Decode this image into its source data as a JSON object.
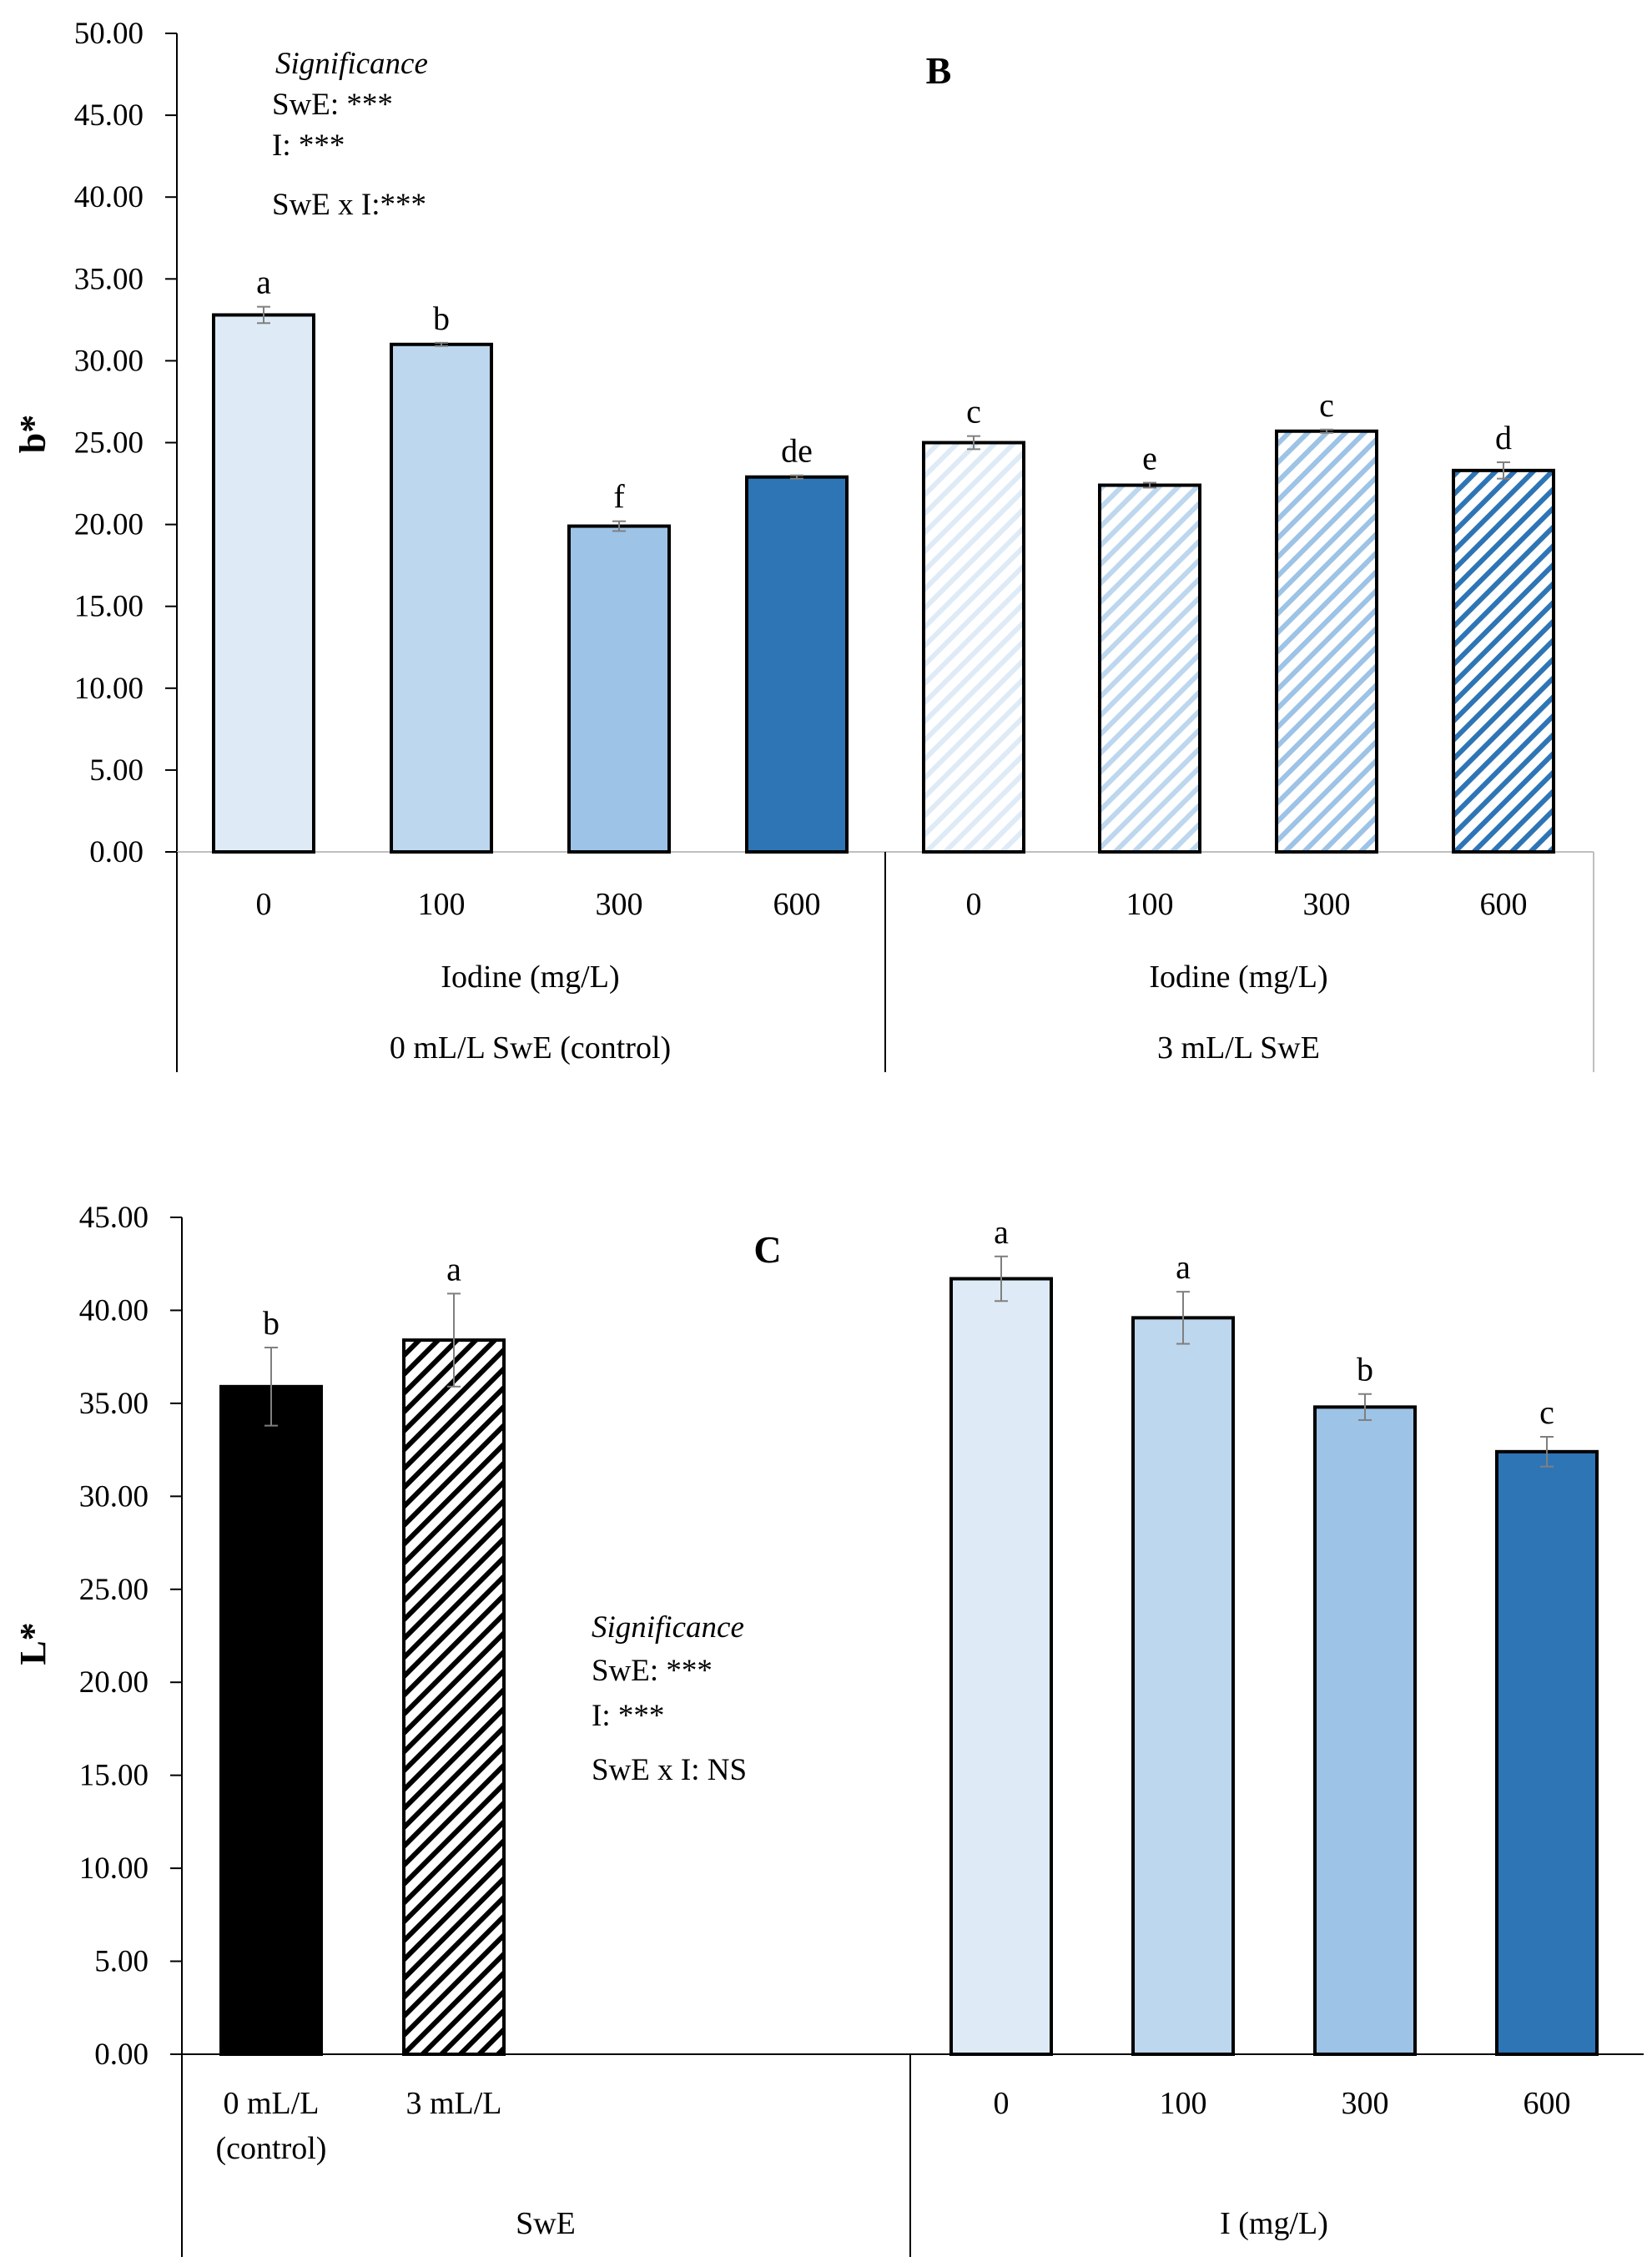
{
  "chart_data": [
    {
      "type": "bar",
      "panel_label": "B",
      "ylabel": "b*",
      "ylim": [
        0,
        50
      ],
      "y_ticks": [
        "0.00",
        "5.00",
        "10.00",
        "15.00",
        "20.00",
        "25.00",
        "30.00",
        "35.00",
        "40.00",
        "45.00",
        "50.00"
      ],
      "groups": [
        {
          "label": "0 mL/L SwE (control)",
          "axis_label": "Iodine (mg/L)",
          "categories": [
            "0",
            "100",
            "300",
            "600"
          ],
          "values": [
            32.8,
            31.0,
            19.9,
            22.9
          ],
          "errors": [
            0.5,
            0.1,
            0.3,
            0.1
          ],
          "letters": [
            "a",
            "b",
            "f",
            "de"
          ],
          "colors": [
            "#deebf7",
            "#bdd7ee",
            "#9dc3e6",
            "#2e75b6"
          ],
          "hatched": false
        },
        {
          "label": "3 mL/L SwE",
          "axis_label": "Iodine (mg/L)",
          "categories": [
            "0",
            "100",
            "300",
            "600"
          ],
          "values": [
            25.0,
            22.4,
            25.7,
            23.3
          ],
          "errors": [
            0.4,
            0.15,
            0.1,
            0.5
          ],
          "letters": [
            "c",
            "e",
            "c",
            "d"
          ],
          "colors": [
            "#deebf7",
            "#bdd7ee",
            "#9dc3e6",
            "#2e75b6"
          ],
          "hatched": true
        }
      ],
      "significance": {
        "title": "Significance",
        "lines": [
          "SwE: ***",
          "I: ***",
          "SwE x I:***"
        ]
      }
    },
    {
      "type": "bar",
      "panel_label": "C",
      "ylabel": "L*",
      "ylim": [
        0,
        45
      ],
      "y_ticks": [
        "0.00",
        "5.00",
        "10.00",
        "15.00",
        "20.00",
        "25.00",
        "30.00",
        "35.00",
        "40.00",
        "45.00"
      ],
      "groups": [
        {
          "label": "SwE",
          "categories": [
            "0 mL/L\n(control)",
            "3 mL/L"
          ],
          "values": [
            35.9,
            38.4
          ],
          "errors": [
            2.1,
            2.5
          ],
          "letters": [
            "b",
            "a"
          ],
          "colors": [
            "#000000",
            "#000000"
          ],
          "hatched_flags": [
            false,
            true
          ]
        },
        {
          "label": "I (mg/L)",
          "categories": [
            "0",
            "100",
            "300",
            "600"
          ],
          "values": [
            41.7,
            39.6,
            34.8,
            32.4
          ],
          "errors": [
            1.2,
            1.4,
            0.7,
            0.8
          ],
          "letters": [
            "a",
            "a",
            "b",
            "c"
          ],
          "colors": [
            "#deebf7",
            "#bdd7ee",
            "#9dc3e6",
            "#2e75b6"
          ]
        }
      ],
      "significance": {
        "title": "Significance",
        "lines": [
          "SwE: ***",
          "I: ***",
          "SwE x I: NS"
        ]
      }
    }
  ]
}
